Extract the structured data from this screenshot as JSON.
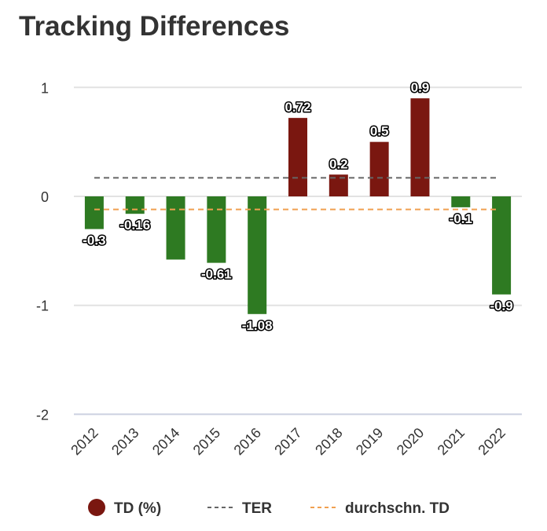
{
  "chart_data": {
    "type": "bar",
    "title": "Tracking Differences",
    "categories": [
      "2012",
      "2013",
      "2014",
      "2015",
      "2016",
      "2017",
      "2018",
      "2019",
      "2020",
      "2021",
      "2022"
    ],
    "series": [
      {
        "name": "TD (%)",
        "values": [
          -0.3,
          -0.16,
          -0.58,
          -0.61,
          -1.08,
          0.72,
          0.2,
          0.5,
          0.9,
          -0.1,
          -0.9
        ]
      }
    ],
    "data_labels": [
      "-0.3",
      "-0.16",
      "",
      "-0.61",
      "-1.08",
      "0.72",
      "0.2",
      "0.5",
      "0.9",
      "-0.1",
      "-0.9"
    ],
    "reference_lines": [
      {
        "name": "TER",
        "value": 0.17,
        "color": "#666666"
      },
      {
        "name": "durchschn. TD",
        "value": -0.12,
        "color": "#f0a050"
      }
    ],
    "ylim": [
      -2,
      1
    ],
    "yticks": [
      1,
      0,
      -1,
      -2
    ],
    "grid": true,
    "legend": "bottom",
    "colors": {
      "positive": "#7a1710",
      "negative": "#2e7a22"
    }
  }
}
